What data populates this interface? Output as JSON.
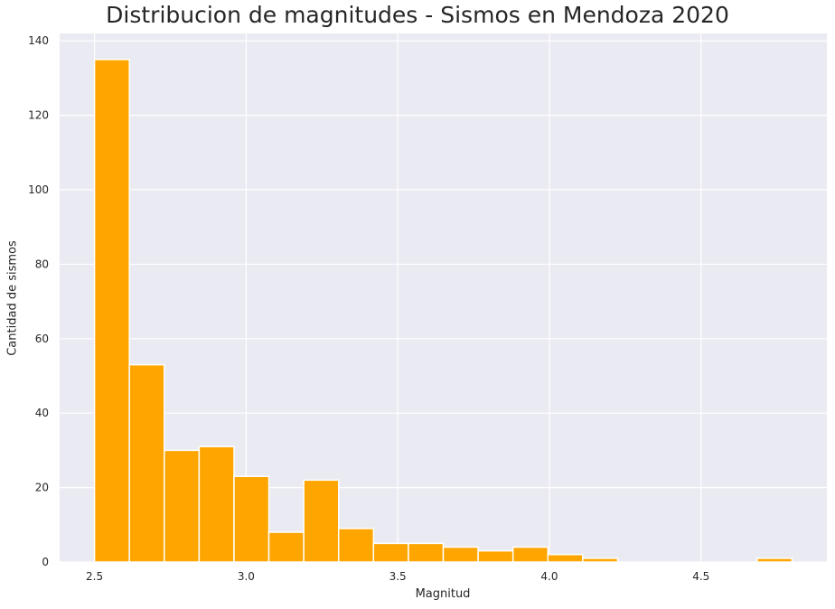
{
  "chart_data": {
    "type": "bar",
    "title": "Distribucion de magnitudes - Sismos en Mendoza 2020",
    "xlabel": "Magnitud",
    "ylabel": "Cantidad de sismos",
    "xlim": [
      2.385,
      4.915
    ],
    "ylim": [
      0,
      142
    ],
    "xticks": [
      2.5,
      3.0,
      3.5,
      4.0,
      4.5
    ],
    "xtick_labels": [
      "2.5",
      "3.0",
      "3.5",
      "4.0",
      "4.5"
    ],
    "yticks": [
      0,
      20,
      40,
      60,
      80,
      100,
      120,
      140
    ],
    "ytick_labels": [
      "0",
      "20",
      "40",
      "60",
      "80",
      "100",
      "120",
      "140"
    ],
    "bin_edges": [
      2.5,
      2.615,
      2.73,
      2.845,
      2.96,
      3.075,
      3.19,
      3.305,
      3.42,
      3.535,
      3.65,
      3.765,
      3.88,
      3.995,
      4.11,
      4.225,
      4.34,
      4.455,
      4.57,
      4.685,
      4.8
    ],
    "values": [
      135,
      53,
      30,
      31,
      23,
      8,
      22,
      9,
      5,
      5,
      4,
      3,
      4,
      2,
      1,
      0,
      0,
      0,
      0,
      1
    ],
    "grid": true,
    "colors": {
      "bar": "#FFA500",
      "bar_edge": "#ffffff",
      "plot_bg": "#EAEAF2",
      "grid": "#ffffff"
    }
  }
}
